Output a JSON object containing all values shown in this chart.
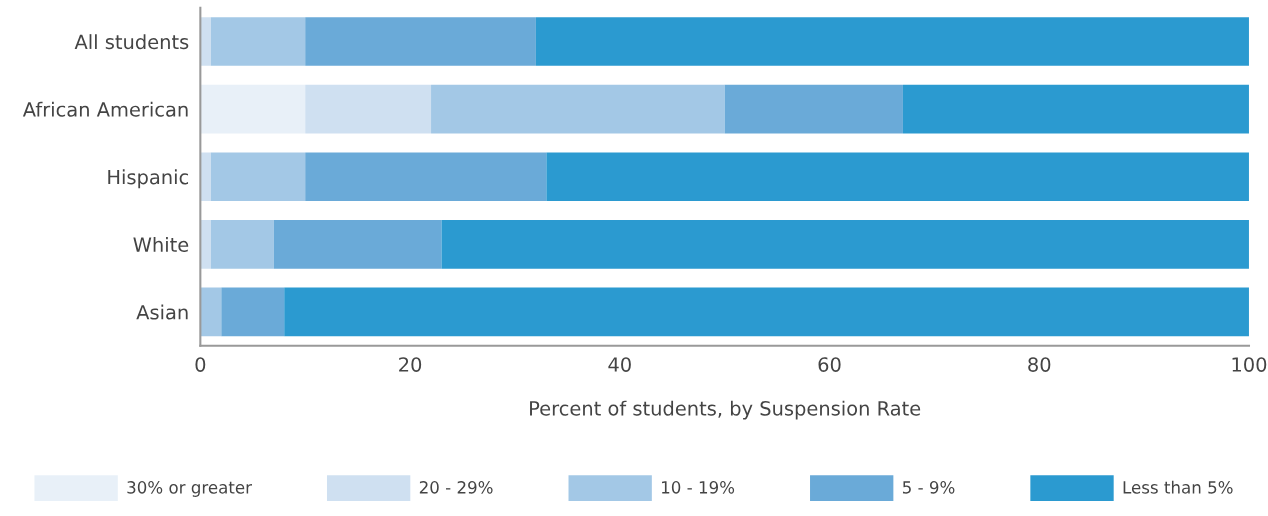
{
  "chart_data": {
    "type": "bar",
    "orientation": "horizontal",
    "stacked": true,
    "categories": [
      "All students",
      "African American",
      "Hispanic",
      "White",
      "Asian"
    ],
    "series": [
      {
        "name": "30% or greater",
        "color": "#e8f0f8",
        "values": [
          0,
          10,
          0,
          0,
          0
        ]
      },
      {
        "name": "20 - 29%",
        "color": "#cfe0f1",
        "values": [
          1,
          12,
          1,
          1,
          0
        ]
      },
      {
        "name": "10 - 19%",
        "color": "#a3c8e6",
        "values": [
          9,
          28,
          9,
          6,
          2
        ]
      },
      {
        "name": "5 - 9%",
        "color": "#6aaad8",
        "values": [
          22,
          17,
          23,
          16,
          6
        ]
      },
      {
        "name": "Less than 5%",
        "color": "#2b9ad0",
        "values": [
          68,
          33,
          67,
          77,
          92
        ]
      }
    ],
    "xlabel": "Percent of students, by Suspension Rate",
    "xlim": [
      0,
      100
    ],
    "xticks": [
      0,
      20,
      40,
      60,
      80,
      100
    ],
    "grid": false,
    "legend": "bottom"
  }
}
